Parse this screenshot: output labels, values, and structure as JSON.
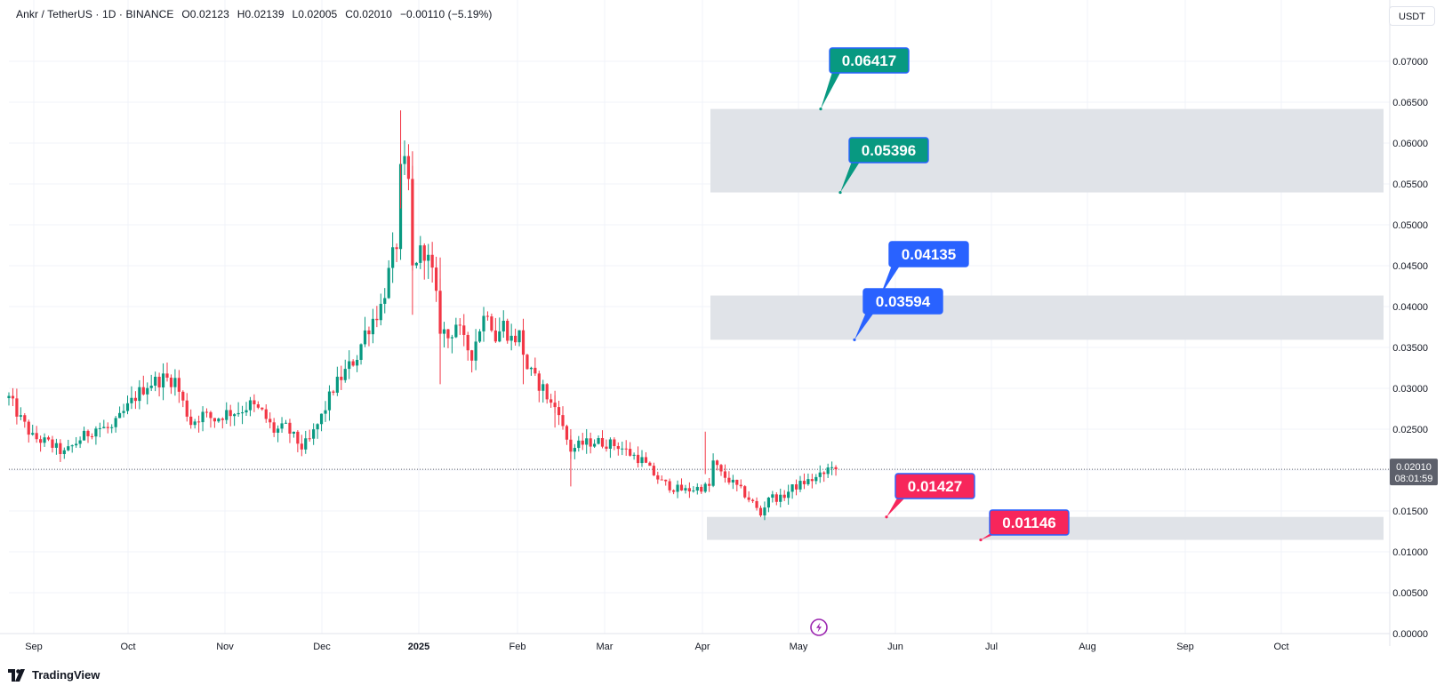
{
  "header": {
    "symbol": "Ankr / TetherUS · 1D · BINANCE",
    "open": "O0.02123",
    "high": "H0.02139",
    "low": "L0.02005",
    "close": "C0.02010",
    "change": "−0.00110 (−5.19%)",
    "currency_button": "USDT"
  },
  "brand": {
    "name": "TradingView"
  },
  "last_price": {
    "value": "0.02010",
    "countdown": "08:01:59",
    "color": "#5d606b"
  },
  "colors": {
    "up": "#089981",
    "down": "#f23645",
    "zone": "#e0e3e8",
    "green_label": "#089981",
    "blue_label": "#2962ff",
    "red_label": "#f7265b"
  },
  "chart_data": {
    "type": "candlestick",
    "symbol": "Ankr / TetherUS",
    "interval": "1D",
    "exchange": "BINANCE",
    "y_axis": {
      "range": [
        0,
        0.07
      ],
      "ticks": [
        "0.07000",
        "0.06500",
        "0.06000",
        "0.05500",
        "0.05000",
        "0.04500",
        "0.04000",
        "0.03500",
        "0.03000",
        "0.02500",
        "0.02000",
        "0.01500",
        "0.01000",
        "0.00500",
        "0.00000"
      ]
    },
    "x_axis": {
      "ticks": [
        {
          "label": "Sep",
          "bold": false
        },
        {
          "label": "Oct",
          "bold": false
        },
        {
          "label": "Nov",
          "bold": false
        },
        {
          "label": "Dec",
          "bold": false
        },
        {
          "label": "2025",
          "bold": true
        },
        {
          "label": "Feb",
          "bold": false
        },
        {
          "label": "Mar",
          "bold": false
        },
        {
          "label": "Apr",
          "bold": false
        },
        {
          "label": "May",
          "bold": false
        },
        {
          "label": "Jun",
          "bold": false
        },
        {
          "label": "Jul",
          "bold": false
        },
        {
          "label": "Aug",
          "bold": false
        },
        {
          "label": "Sep",
          "bold": false
        },
        {
          "label": "Oct",
          "bold": false
        }
      ]
    },
    "grid": true,
    "price_path": [
      [
        0,
        0.0288
      ],
      [
        3,
        0.0262
      ],
      [
        6,
        0.024
      ],
      [
        10,
        0.0233
      ],
      [
        14,
        0.022
      ],
      [
        18,
        0.0238
      ],
      [
        22,
        0.0252
      ],
      [
        26,
        0.025
      ],
      [
        29,
        0.027
      ],
      [
        32,
        0.029
      ],
      [
        35,
        0.0305
      ],
      [
        39,
        0.0312
      ],
      [
        42,
        0.031
      ],
      [
        44,
        0.0282
      ],
      [
        46,
        0.0258
      ],
      [
        49,
        0.0268
      ],
      [
        52,
        0.0262
      ],
      [
        55,
        0.027
      ],
      [
        58,
        0.0272
      ],
      [
        61,
        0.028
      ],
      [
        64,
        0.027
      ],
      [
        67,
        0.0248
      ],
      [
        70,
        0.0252
      ],
      [
        72,
        0.024
      ],
      [
        74,
        0.0228
      ],
      [
        76,
        0.0236
      ],
      [
        79,
        0.0265
      ],
      [
        82,
        0.03
      ],
      [
        85,
        0.032
      ],
      [
        88,
        0.034
      ],
      [
        90,
        0.0368
      ],
      [
        92,
        0.0385
      ],
      [
        94,
        0.04
      ],
      [
        96,
        0.044
      ],
      [
        98,
        0.0478
      ],
      [
        99,
        0.056
      ],
      [
        100,
        0.0568
      ],
      [
        101,
        0.055
      ],
      [
        102,
        0.0445
      ],
      [
        103,
        0.046
      ],
      [
        105,
        0.047
      ],
      [
        107,
        0.044
      ],
      [
        109,
        0.0375
      ],
      [
        111,
        0.0362
      ],
      [
        113,
        0.038
      ],
      [
        115,
        0.0355
      ],
      [
        117,
        0.0343
      ],
      [
        119,
        0.0375
      ],
      [
        121,
        0.0398
      ],
      [
        123,
        0.0362
      ],
      [
        125,
        0.0378
      ],
      [
        127,
        0.036
      ],
      [
        129,
        0.0365
      ],
      [
        131,
        0.0325
      ],
      [
        133,
        0.031
      ],
      [
        135,
        0.03
      ],
      [
        137,
        0.028
      ],
      [
        139,
        0.0275
      ],
      [
        140,
        0.025
      ],
      [
        142,
        0.0225
      ],
      [
        145,
        0.0232
      ],
      [
        148,
        0.0235
      ],
      [
        151,
        0.0233
      ],
      [
        154,
        0.023
      ],
      [
        157,
        0.022
      ],
      [
        160,
        0.0212
      ],
      [
        162,
        0.02
      ],
      [
        165,
        0.0185
      ],
      [
        168,
        0.0178
      ],
      [
        171,
        0.0175
      ],
      [
        174,
        0.0178
      ],
      [
        177,
        0.018
      ],
      [
        178,
        0.021
      ],
      [
        180,
        0.0195
      ],
      [
        182,
        0.0188
      ],
      [
        185,
        0.0175
      ],
      [
        188,
        0.016
      ],
      [
        190,
        0.0145
      ],
      [
        192,
        0.0168
      ],
      [
        195,
        0.0165
      ],
      [
        198,
        0.0178
      ],
      [
        201,
        0.0185
      ],
      [
        204,
        0.019
      ],
      [
        206,
        0.0195
      ],
      [
        208,
        0.0208
      ],
      [
        209,
        0.0201
      ]
    ],
    "zones": [
      {
        "top": 0.06417,
        "bottom": 0.05396
      },
      {
        "top": 0.04135,
        "bottom": 0.03594
      },
      {
        "top": 0.01427,
        "bottom": 0.01146
      }
    ],
    "levels": [
      {
        "label": "0.06417",
        "value": 0.06417,
        "color": "#089981"
      },
      {
        "label": "0.05396",
        "value": 0.05396,
        "color": "#089981"
      },
      {
        "label": "0.04135",
        "value": 0.04135,
        "color": "#2962ff"
      },
      {
        "label": "0.03594",
        "value": 0.03594,
        "color": "#2962ff"
      },
      {
        "label": "0.01427",
        "value": 0.01427,
        "color": "#f7265b"
      },
      {
        "label": "0.01146",
        "value": 0.01146,
        "color": "#f7265b"
      }
    ],
    "last_price": 0.0201
  }
}
